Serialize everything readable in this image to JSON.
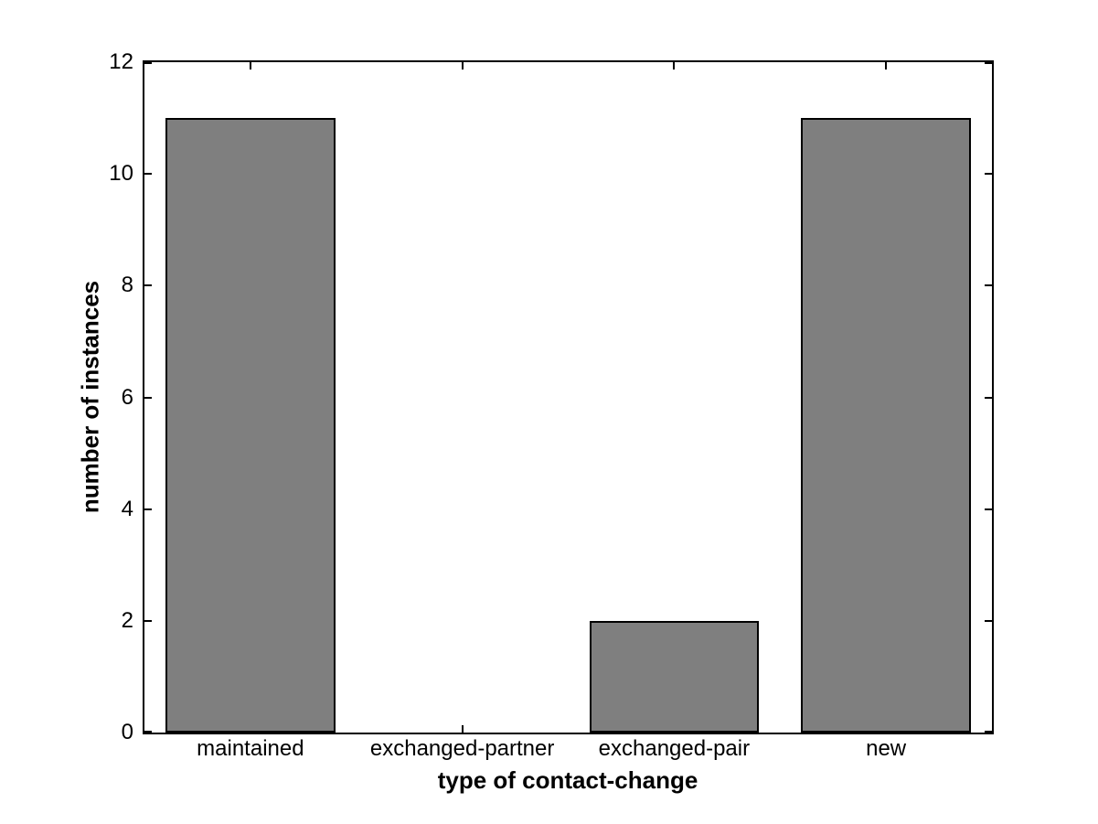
{
  "chart_data": {
    "type": "bar",
    "categories": [
      "maintained",
      "exchanged-partner",
      "exchanged-pair",
      "new"
    ],
    "values": [
      11,
      0,
      2,
      11
    ],
    "title": "",
    "xlabel": "type of contact-change",
    "ylabel": "number of instances",
    "ylim": [
      0,
      12
    ],
    "yticks": [
      0,
      2,
      4,
      6,
      8,
      10,
      12
    ],
    "bar_width_fraction": 0.8,
    "grid": false,
    "legend": "none",
    "colors": {
      "bar_fill": "#7f7f7f",
      "bar_edge": "#000000",
      "axis": "#000000",
      "background": "#ffffff",
      "text": "#000000"
    }
  }
}
